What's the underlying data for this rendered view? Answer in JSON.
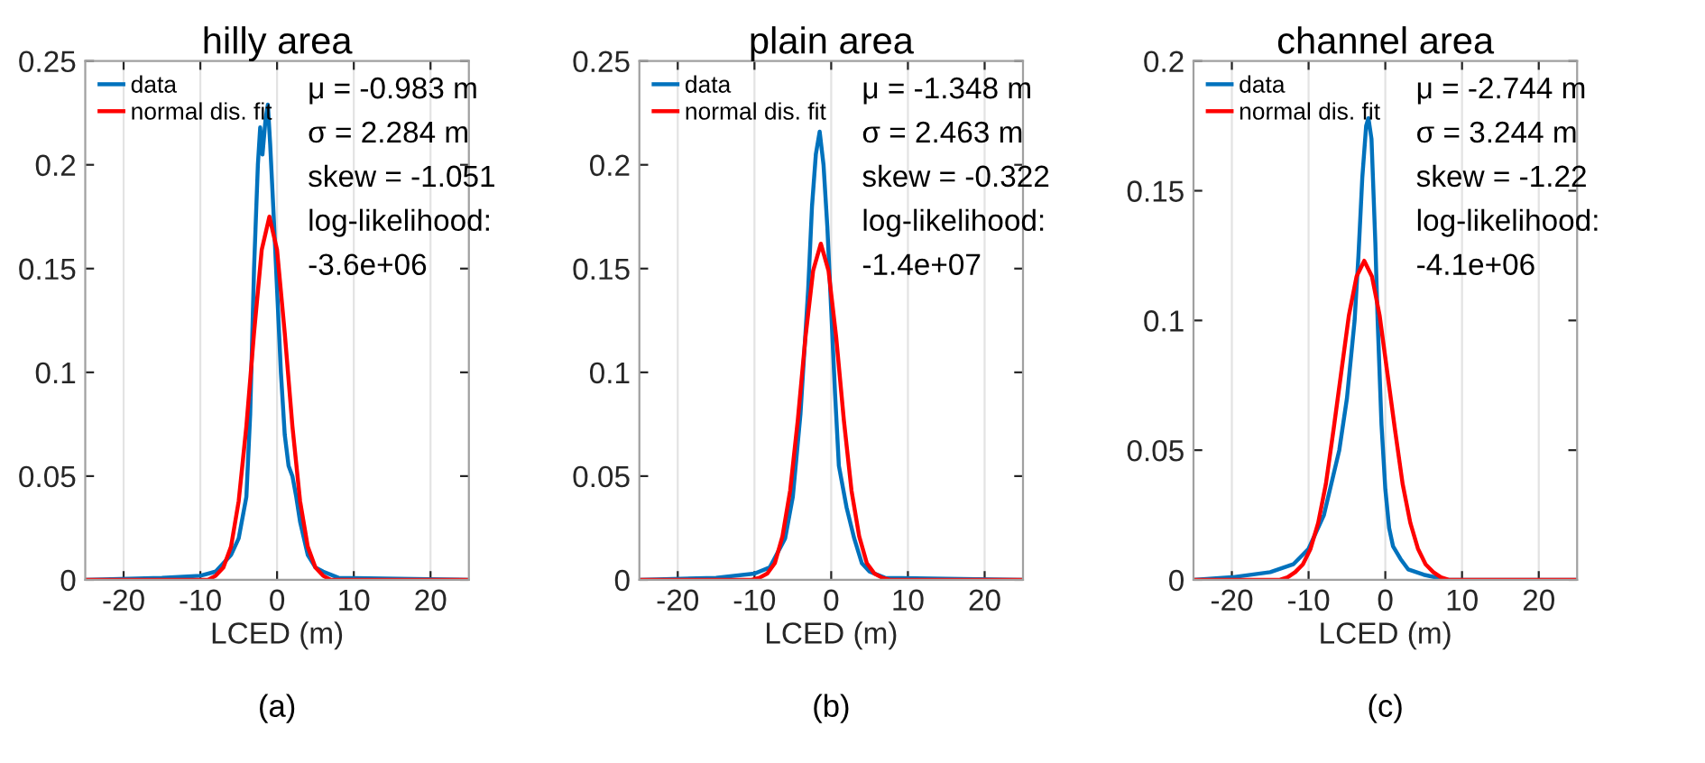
{
  "chart_data": [
    {
      "type": "line",
      "title": "hilly area",
      "xlabel": "LCED (m)",
      "xlim": [
        -25,
        25
      ],
      "xticks": [
        -20,
        -10,
        0,
        10,
        20
      ],
      "ylim": [
        0,
        0.25
      ],
      "yticks": [
        0,
        0.05,
        0.1,
        0.15,
        0.2,
        0.25
      ],
      "grid": "x",
      "legend": "top left",
      "annotations": [
        "μ = -0.983 m",
        "σ = 2.284 m",
        "skew = -1.051",
        "log-likelihood:",
        "-3.6e+06",
        "(a)"
      ],
      "series": [
        {
          "name": "data",
          "color": "#0072bd",
          "x": [
            -25,
            -15,
            -10,
            -8,
            -6,
            -5,
            -4,
            -3.5,
            -3,
            -2.5,
            -2.2,
            -1.9,
            -1.5,
            -1.2,
            -0.9,
            -0.5,
            0,
            0.5,
            1,
            1.5,
            2,
            2.5,
            3,
            4,
            5,
            6,
            8,
            25
          ],
          "values": [
            0,
            0.001,
            0.002,
            0.004,
            0.012,
            0.02,
            0.04,
            0.08,
            0.15,
            0.2,
            0.218,
            0.205,
            0.222,
            0.229,
            0.21,
            0.18,
            0.14,
            0.1,
            0.07,
            0.055,
            0.05,
            0.04,
            0.028,
            0.012,
            0.006,
            0.004,
            0.001,
            0
          ]
        },
        {
          "name": "normal dis. fit",
          "color": "#ff0000",
          "x": [
            -25,
            -9,
            -8,
            -7,
            -6,
            -5,
            -4,
            -3,
            -2,
            -1,
            0,
            1,
            2,
            3,
            4,
            5,
            6,
            7,
            25
          ],
          "values": [
            0,
            0,
            0.002,
            0.006,
            0.016,
            0.038,
            0.074,
            0.119,
            0.159,
            0.175,
            0.159,
            0.119,
            0.074,
            0.038,
            0.016,
            0.006,
            0.002,
            0,
            0
          ]
        }
      ]
    },
    {
      "type": "line",
      "title": "plain area",
      "xlabel": "LCED (m)",
      "xlim": [
        -25,
        25
      ],
      "xticks": [
        -20,
        -10,
        0,
        10,
        20
      ],
      "ylim": [
        0,
        0.25
      ],
      "yticks": [
        0,
        0.05,
        0.1,
        0.15,
        0.2,
        0.25
      ],
      "grid": "x",
      "legend": "top left",
      "annotations": [
        "μ = -1.348 m",
        "σ = 2.463 m",
        "skew = -0.322",
        "log-likelihood:",
        "-1.4e+07",
        "(b)"
      ],
      "series": [
        {
          "name": "data",
          "color": "#0072bd",
          "x": [
            -25,
            -15,
            -10,
            -8,
            -6,
            -5,
            -4,
            -3,
            -2.5,
            -2,
            -1.5,
            -1,
            -0.5,
            0,
            0.5,
            1,
            2,
            3,
            4,
            5,
            7,
            25
          ],
          "values": [
            0,
            0.001,
            0.003,
            0.006,
            0.02,
            0.04,
            0.08,
            0.14,
            0.18,
            0.205,
            0.216,
            0.2,
            0.17,
            0.13,
            0.09,
            0.055,
            0.035,
            0.02,
            0.008,
            0.004,
            0.001,
            0
          ]
        },
        {
          "name": "normal dis. fit",
          "color": "#ff0000",
          "x": [
            -25,
            -10.35,
            -9.35,
            -8.35,
            -7.35,
            -6.35,
            -5.35,
            -4.35,
            -3.35,
            -2.35,
            -1.35,
            -0.35,
            0.65,
            1.65,
            2.65,
            3.65,
            4.65,
            5.65,
            6.65,
            7.65,
            25
          ],
          "values": [
            0,
            0,
            0.001,
            0.003,
            0.008,
            0.021,
            0.043,
            0.077,
            0.117,
            0.149,
            0.162,
            0.149,
            0.117,
            0.077,
            0.043,
            0.021,
            0.008,
            0.003,
            0.001,
            0,
            0
          ]
        }
      ]
    },
    {
      "type": "line",
      "title": "channel area",
      "xlabel": "LCED (m)",
      "xlim": [
        -25,
        25
      ],
      "xticks": [
        -20,
        -10,
        0,
        10,
        20
      ],
      "ylim": [
        0,
        0.2
      ],
      "yticks": [
        0,
        0.05,
        0.1,
        0.15,
        0.2
      ],
      "grid": "x",
      "legend": "top left",
      "annotations": [
        "μ = -2.744 m",
        "σ = 3.244 m",
        "skew = -1.22",
        "log-likelihood:",
        "-4.1e+06",
        "(c)"
      ],
      "series": [
        {
          "name": "data",
          "color": "#0072bd",
          "x": [
            -25,
            -20,
            -15,
            -12,
            -10,
            -8,
            -6,
            -5,
            -4,
            -3.5,
            -3,
            -2.5,
            -2.2,
            -1.8,
            -1.3,
            -1,
            -0.5,
            0,
            0.5,
            1,
            2,
            3,
            5,
            8,
            25
          ],
          "values": [
            0,
            0.001,
            0.003,
            0.006,
            0.012,
            0.025,
            0.05,
            0.07,
            0.1,
            0.125,
            0.155,
            0.175,
            0.178,
            0.17,
            0.13,
            0.1,
            0.06,
            0.035,
            0.02,
            0.013,
            0.008,
            0.004,
            0.002,
            0,
            0
          ]
        },
        {
          "name": "normal dis. fit",
          "color": "#ff0000",
          "x": [
            -25,
            -13.744,
            -12.744,
            -11.744,
            -10.744,
            -9.744,
            -8.744,
            -7.744,
            -6.744,
            -5.744,
            -4.744,
            -3.744,
            -2.744,
            -1.744,
            -0.744,
            0.256,
            1.256,
            2.256,
            3.256,
            4.256,
            5.256,
            6.256,
            7.256,
            8.256,
            25
          ],
          "values": [
            0,
            0,
            0.001,
            0.003,
            0.006,
            0.012,
            0.022,
            0.037,
            0.058,
            0.08,
            0.102,
            0.117,
            0.123,
            0.117,
            0.102,
            0.08,
            0.058,
            0.037,
            0.022,
            0.012,
            0.006,
            0.003,
            0.001,
            0,
            0
          ]
        }
      ]
    }
  ]
}
